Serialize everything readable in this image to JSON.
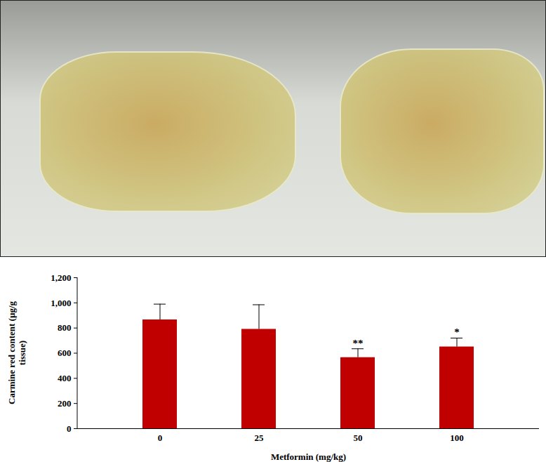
{
  "chart_data": {
    "type": "bar",
    "x_label": "Metformin (mg/kg)",
    "y_label": "Carmine red content (µg/g tissue)",
    "categories": [
      "0",
      "25",
      "50",
      "100"
    ],
    "values": [
      865,
      790,
      565,
      650
    ],
    "error": [
      125,
      195,
      70,
      70
    ],
    "significance": [
      null,
      null,
      "**",
      "*"
    ],
    "color": "#c00000",
    "ylim": [
      0,
      1200
    ],
    "yticks": [
      0,
      200,
      400,
      600,
      800,
      1000,
      1200
    ],
    "grid": false
  }
}
